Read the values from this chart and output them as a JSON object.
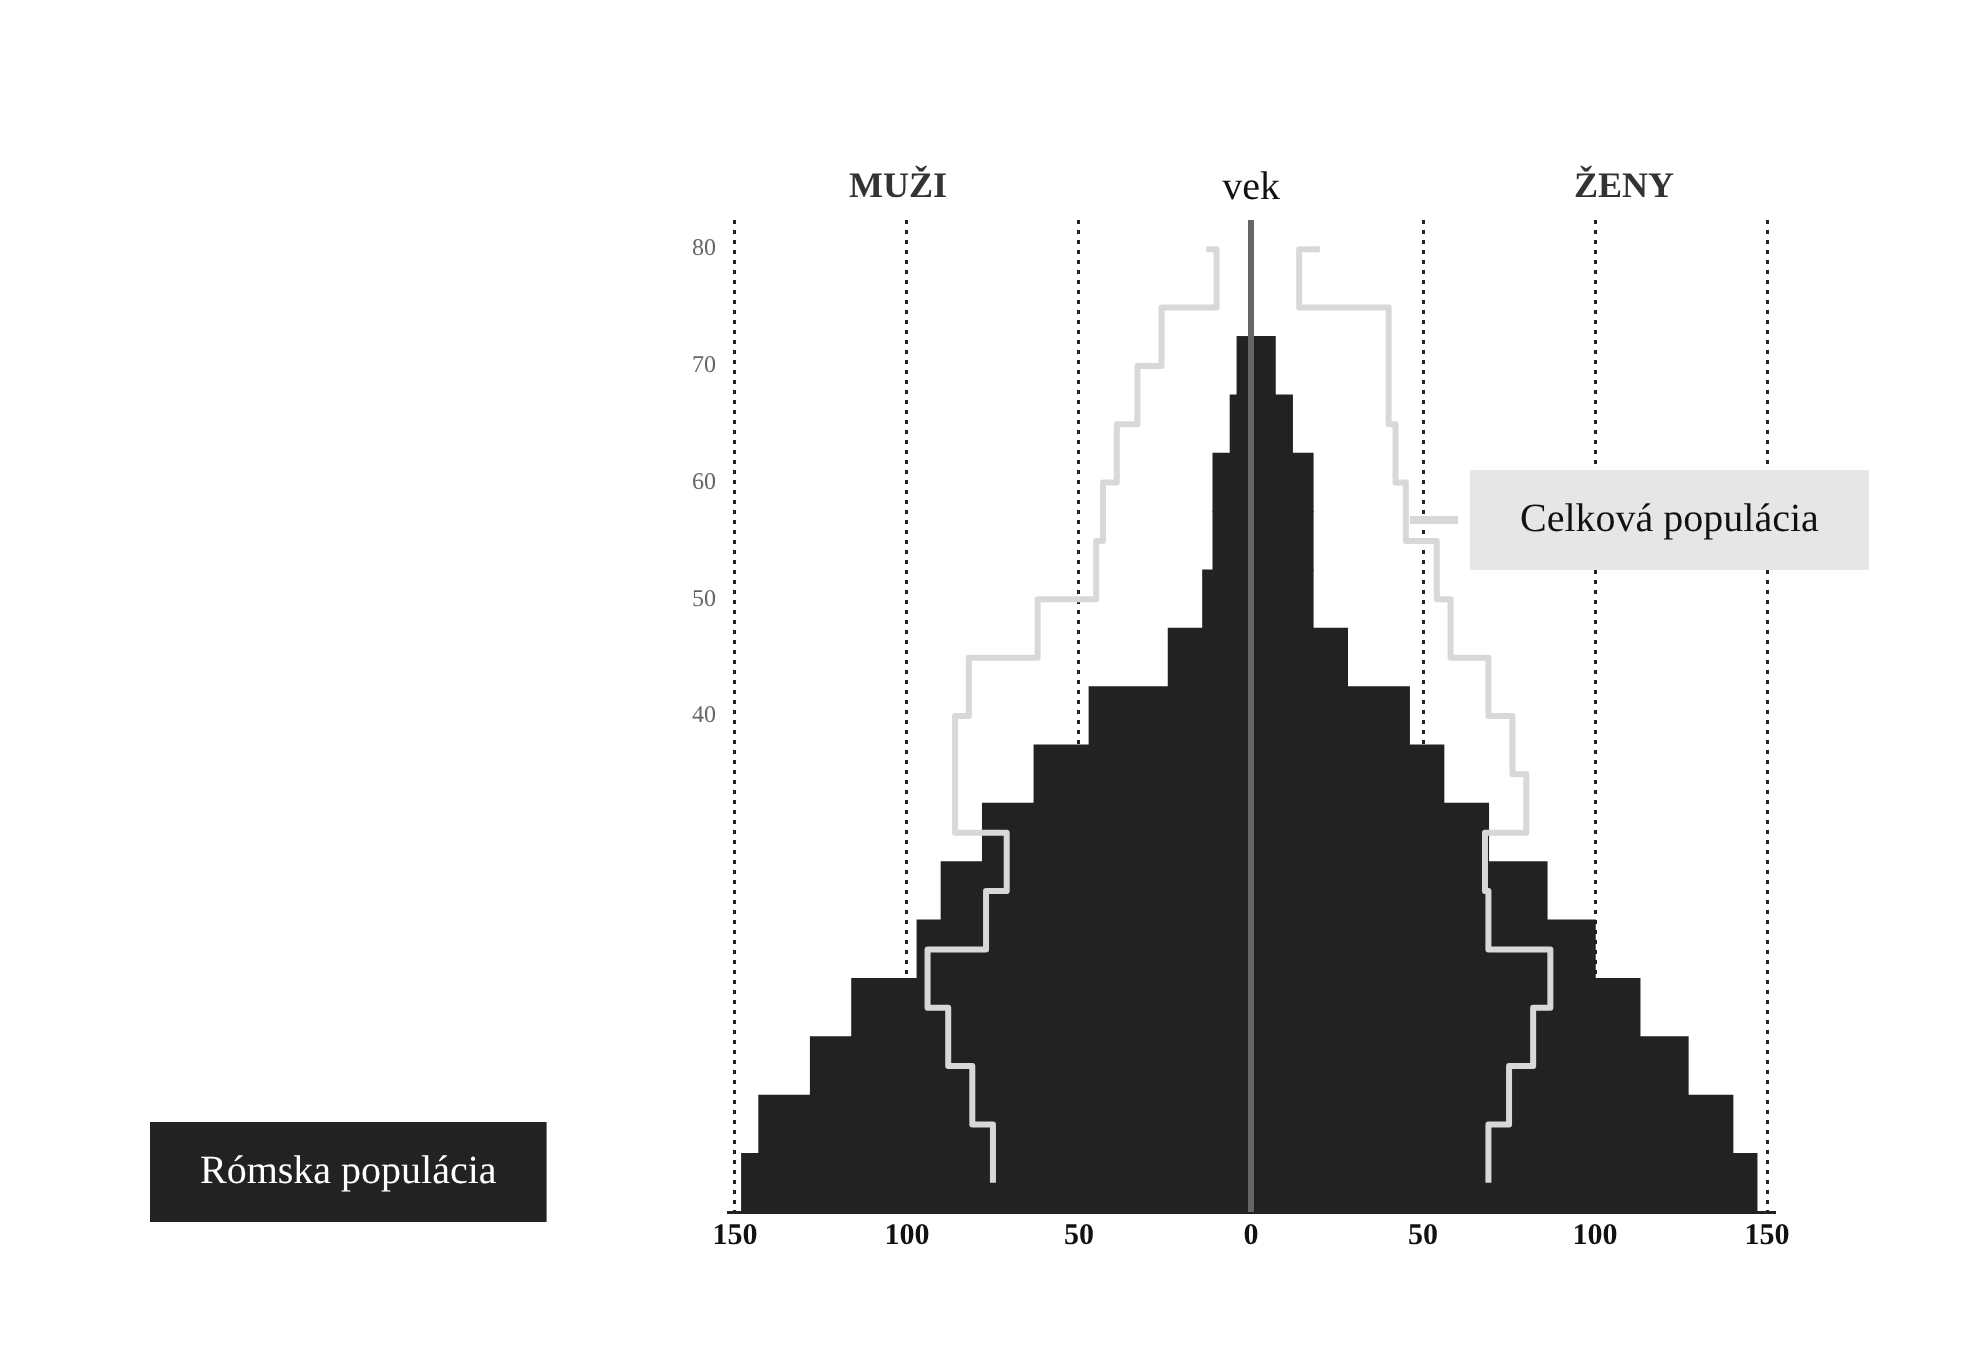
{
  "chart_data": {
    "type": "bar",
    "orientation": "horizontal",
    "ylabel": "vek",
    "annotations": [
      "MUŽI",
      "ŽENY"
    ],
    "categories": [
      "80",
      null,
      "70",
      null,
      "60",
      null,
      "50",
      null,
      "40",
      null,
      null,
      null,
      null,
      null,
      null,
      null,
      null
    ],
    "series": [
      {
        "name": "Rómska populácia",
        "color": "#222222",
        "values": [
          null,
          null,
          -4,
          -6,
          -11,
          -11,
          -14,
          -24,
          -47,
          -63,
          -78,
          -90,
          -97,
          -116,
          -128,
          -143,
          -148
        ]
      },
      {
        "color": "#222222",
        "values": [
          null,
          null,
          7,
          12,
          18,
          18,
          18,
          28,
          46,
          56,
          69,
          86,
          100,
          113,
          127,
          140,
          147
        ]
      },
      {
        "name": "Celková populácia",
        "type": "step",
        "color": "#d8d8d8",
        "values": [
          -13,
          -10,
          -26,
          -33,
          -39,
          -43,
          -45,
          -62,
          -82,
          -86,
          -86,
          -71,
          -77,
          -94,
          -88,
          -81,
          -75
        ]
      },
      {
        "type": "step",
        "color": "#d8d8d8",
        "values": [
          20,
          14,
          40,
          40,
          42,
          45,
          54,
          58,
          69,
          76,
          80,
          68,
          69,
          87,
          82,
          75,
          69
        ]
      }
    ],
    "xlim": [
      -152,
      152
    ],
    "xticks": [
      {
        "value": -150,
        "label": "150"
      },
      {
        "value": -100,
        "label": "100"
      },
      {
        "value": -50,
        "label": "50"
      },
      0,
      50,
      100,
      150
    ],
    "grid": "x",
    "stacked": true
  }
}
